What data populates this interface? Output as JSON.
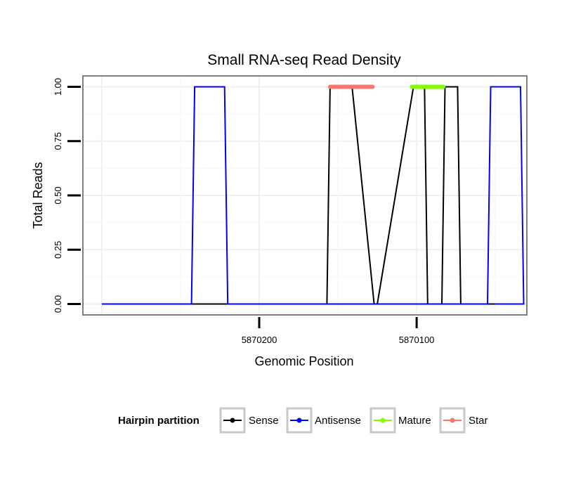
{
  "chart_data": {
    "type": "line",
    "title": "Small RNA-seq Read Density",
    "xlabel": "Genomic Position",
    "ylabel": "Total Reads",
    "x_reversed": true,
    "xlim": [
      5870312,
      5870030
    ],
    "ylim": [
      -0.05,
      1.05
    ],
    "x_ticks": [
      5870200,
      5870100
    ],
    "x_tick_labels": [
      "5870200",
      "5870100"
    ],
    "y_ticks": [
      0,
      0.25,
      0.5,
      0.75,
      1.0
    ],
    "y_tick_labels": [
      "0.00",
      "0.25",
      "0.50",
      "0.75",
      "1.00"
    ],
    "grid": true,
    "legend": {
      "title": "Hairpin partition",
      "placement": "bottom",
      "entries": [
        "Sense",
        "Antisense",
        "Mature",
        "Star"
      ]
    },
    "series": [
      {
        "name": "Sense",
        "color": "#000000",
        "x": [
          5870300,
          5870157,
          5870155,
          5870141,
          5870127,
          5870125,
          5870102,
          5870095,
          5870093,
          5870084,
          5870082,
          5870074,
          5870072,
          5870050
        ],
        "y": [
          0,
          0,
          1,
          1,
          0,
          0,
          1,
          1,
          0,
          0,
          1,
          1,
          0,
          0
        ]
      },
      {
        "name": "Antisense",
        "color": "#0000ff",
        "x": [
          5870300,
          5870243,
          5870241,
          5870222,
          5870220,
          5870055,
          5870053,
          5870034,
          5870032,
          5870050
        ],
        "y": [
          0,
          0,
          1,
          1,
          0,
          0,
          1,
          1,
          0,
          0
        ]
      },
      {
        "name": "Mature",
        "color": "#7fff00",
        "x": [
          5870103,
          5870083
        ],
        "y": [
          1,
          1
        ]
      },
      {
        "name": "Star",
        "color": "#f8766d",
        "x": [
          5870155,
          5870128
        ],
        "y": [
          1,
          1
        ]
      }
    ]
  }
}
